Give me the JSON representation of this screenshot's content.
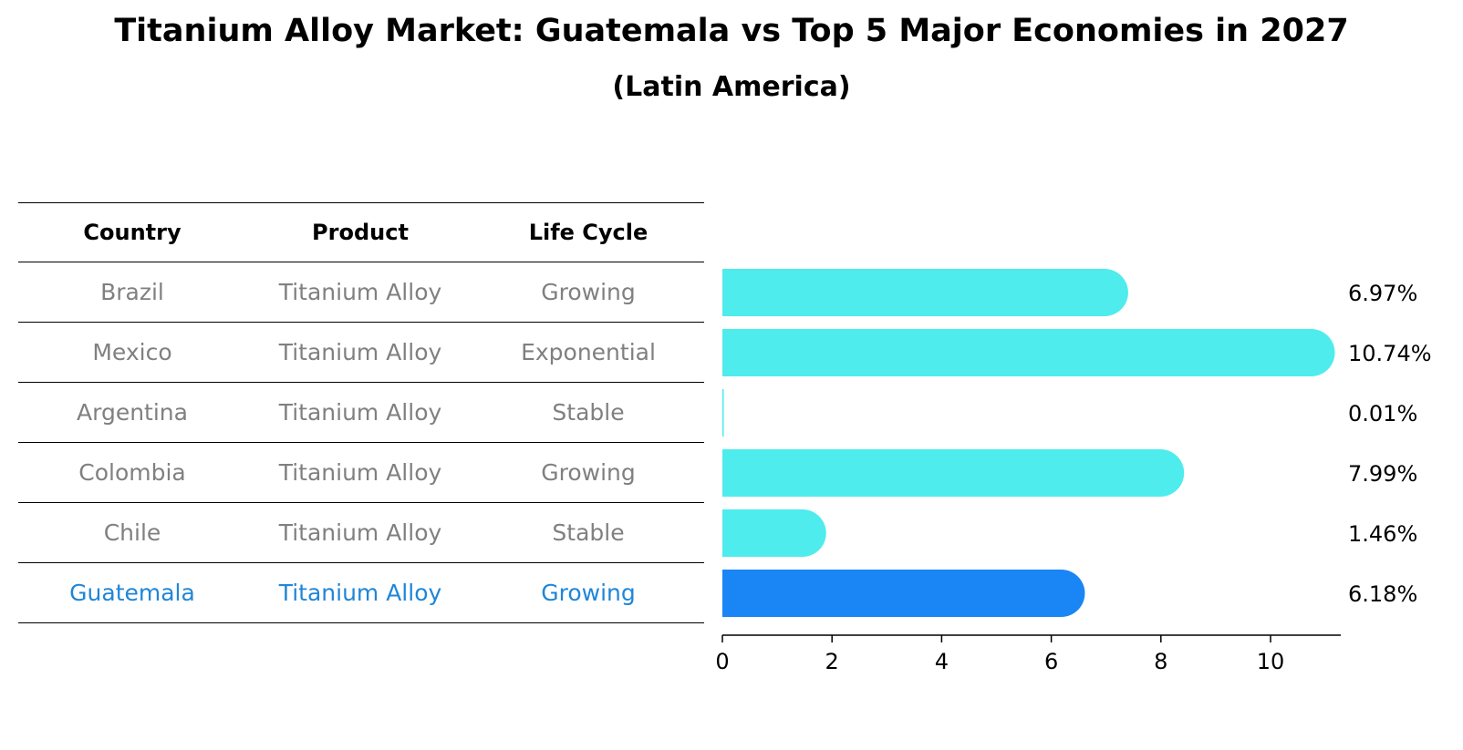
{
  "title": "Titanium Alloy Market: Guatemala vs Top 5 Major Economies in 2027",
  "subtitle": "(Latin America)",
  "table": {
    "headers": [
      "Country",
      "Product",
      "Life Cycle"
    ],
    "rows": [
      {
        "country": "Brazil",
        "product": "Titanium Alloy",
        "life_cycle": "Growing"
      },
      {
        "country": "Mexico",
        "product": "Titanium Alloy",
        "life_cycle": "Exponential"
      },
      {
        "country": "Argentina",
        "product": "Titanium Alloy",
        "life_cycle": "Stable"
      },
      {
        "country": "Colombia",
        "product": "Titanium Alloy",
        "life_cycle": "Growing"
      },
      {
        "country": "Chile",
        "product": "Titanium Alloy",
        "life_cycle": "Stable"
      },
      {
        "country": "Guatemala",
        "product": "Titanium Alloy",
        "life_cycle": "Growing"
      }
    ]
  },
  "chart_data": {
    "type": "bar",
    "orientation": "horizontal",
    "categories": [
      "Brazil",
      "Mexico",
      "Argentina",
      "Colombia",
      "Chile",
      "Guatemala"
    ],
    "values": [
      6.97,
      10.74,
      0.01,
      7.99,
      1.46,
      6.18
    ],
    "value_labels": [
      "6.97%",
      "10.74%",
      "0.01%",
      "7.99%",
      "1.46%",
      "6.18%"
    ],
    "highlight": "Guatemala",
    "xlim": [
      0,
      11.3
    ],
    "xticks": [
      "0",
      "2",
      "4",
      "6",
      "8",
      "10"
    ],
    "colors": {
      "default": "#4eecec",
      "highlight": "#1a85f5"
    },
    "grid": false
  }
}
